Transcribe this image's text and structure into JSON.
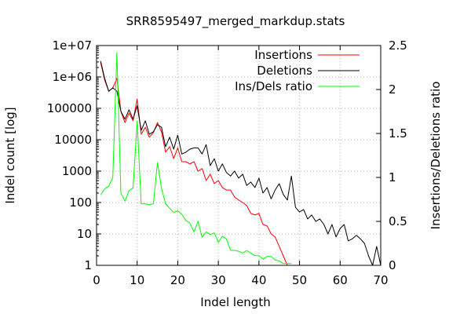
{
  "chart_data": {
    "type": "line",
    "title": "SRR8595497_merged_markdup.stats",
    "xlabel": "Indel length",
    "ylabel": "Indel count [log]",
    "y2label": "Insertions/Deletions ratio",
    "xlim": [
      0,
      70
    ],
    "ylim": [
      1,
      10000000
    ],
    "yscale": "log",
    "y2lim": [
      0,
      2.5
    ],
    "grid": true,
    "legend_position": "top-right",
    "xticks": [
      "0",
      "10",
      "20",
      "30",
      "40",
      "50",
      "60",
      "70"
    ],
    "yticks": [
      "1",
      "10",
      "100",
      "1000",
      "10000",
      "100000",
      "1e+06",
      "1e+07"
    ],
    "y2ticks": [
      "0",
      "0.5",
      "1",
      "1.5",
      "2",
      "2.5"
    ],
    "series": [
      {
        "name": "Insertions",
        "axis": "y",
        "color": "#ff0000",
        "x": [
          1,
          2,
          3,
          4,
          5,
          6,
          7,
          8,
          9,
          10,
          11,
          12,
          13,
          14,
          15,
          16,
          17,
          18,
          19,
          20,
          21,
          22,
          23,
          24,
          25,
          26,
          27,
          28,
          29,
          30,
          31,
          32,
          33,
          34,
          35,
          36,
          37,
          38,
          39,
          40,
          41,
          42,
          43,
          44,
          45,
          46,
          47,
          48
        ],
        "y": [
          2900000,
          800000,
          350000,
          450000,
          900000,
          80000,
          35000,
          70000,
          40000,
          200000,
          15000,
          25000,
          12000,
          17000,
          35000,
          18000,
          4000,
          6000,
          2500,
          5500,
          2000,
          2000,
          1700,
          2000,
          1000,
          1200,
          500,
          800,
          400,
          500,
          300,
          250,
          250,
          150,
          120,
          100,
          80,
          45,
          40,
          45,
          20,
          18,
          10,
          8,
          4,
          2,
          1,
          1
        ]
      },
      {
        "name": "Deletions",
        "axis": "y",
        "color": "#000000",
        "x": [
          1,
          2,
          3,
          4,
          5,
          6,
          7,
          8,
          9,
          10,
          11,
          12,
          13,
          14,
          15,
          16,
          17,
          18,
          19,
          20,
          21,
          22,
          23,
          24,
          25,
          26,
          27,
          28,
          29,
          30,
          31,
          32,
          33,
          34,
          35,
          36,
          37,
          38,
          39,
          40,
          41,
          42,
          43,
          44,
          45,
          46,
          47,
          48,
          49,
          50,
          51,
          52,
          53,
          54,
          55,
          56,
          57,
          58,
          59,
          60,
          61,
          62,
          63,
          64,
          65,
          66,
          67,
          68,
          69,
          70
        ],
        "y": [
          3200000,
          900000,
          350000,
          450000,
          350000,
          80000,
          45000,
          90000,
          45000,
          120000,
          20000,
          40000,
          15000,
          18000,
          30000,
          25000,
          6000,
          12000,
          5000,
          14000,
          3500,
          4000,
          5000,
          5500,
          5500,
          3500,
          7000,
          1500,
          2500,
          1000,
          1700,
          900,
          700,
          1000,
          600,
          800,
          350,
          450,
          300,
          600,
          200,
          300,
          130,
          250,
          400,
          180,
          120,
          700,
          70,
          50,
          60,
          30,
          40,
          25,
          30,
          20,
          10,
          20,
          8,
          15,
          20,
          6,
          7,
          9,
          7,
          5,
          2,
          1,
          4,
          1
        ]
      },
      {
        "name": "Ins/Dels ratio",
        "axis": "y2",
        "color": "#00ff00",
        "x": [
          1,
          2,
          3,
          4,
          5,
          6,
          7,
          8,
          9,
          10,
          11,
          12,
          13,
          14,
          15,
          16,
          17,
          18,
          19,
          20,
          21,
          22,
          23,
          24,
          25,
          26,
          27,
          28,
          29,
          30,
          31,
          32,
          33,
          34,
          35,
          36,
          37,
          38,
          39,
          40,
          41,
          42,
          43,
          44,
          45,
          46,
          47,
          48
        ],
        "y": [
          0.8,
          0.87,
          0.9,
          1.0,
          2.42,
          0.82,
          0.73,
          0.85,
          0.88,
          1.64,
          0.7,
          0.7,
          0.69,
          0.7,
          1.17,
          0.88,
          0.7,
          0.65,
          0.6,
          0.62,
          0.58,
          0.51,
          0.48,
          0.38,
          0.5,
          0.32,
          0.38,
          0.35,
          0.37,
          0.26,
          0.33,
          0.3,
          0.17,
          0.17,
          0.16,
          0.14,
          0.17,
          0.14,
          0.11,
          0.11,
          0.07,
          0.1,
          0.1,
          0.06,
          0.05,
          0.02,
          0.02,
          0.02
        ]
      }
    ]
  }
}
